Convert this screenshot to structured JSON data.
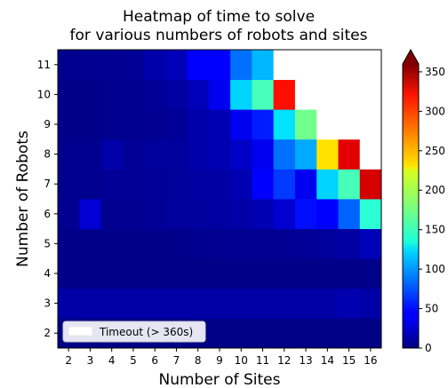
{
  "chart_data": {
    "type": "heatmap",
    "title_lines": [
      "Heatmap of time to solve",
      "for various numbers of robots and sites"
    ],
    "xlabel": "Number of Sites",
    "ylabel": "Number of Robots",
    "x_categories": [
      "2",
      "3",
      "4",
      "5",
      "6",
      "7",
      "8",
      "9",
      "10",
      "11",
      "12",
      "13",
      "14",
      "15",
      "16"
    ],
    "y_categories": [
      "2",
      "3",
      "4",
      "5",
      "6",
      "7",
      "8",
      "9",
      "10",
      "11"
    ],
    "colormap": "jet",
    "color_range": [
      0,
      360
    ],
    "colorbar_ticks": [
      "0",
      "50",
      "100",
      "150",
      "200",
      "250",
      "300",
      "350"
    ],
    "colorbar_extend": "max",
    "timeout_color": "#ffffff",
    "legend": {
      "label": "Timeout (> 360s)",
      "location": "lower-left"
    },
    "values_by_robots": {
      "2": [
        2,
        2,
        2,
        2,
        2,
        2,
        2,
        2,
        2,
        2,
        2,
        2,
        2,
        2,
        2
      ],
      "3": [
        14,
        14,
        14,
        14,
        14,
        14,
        14,
        14,
        14,
        14,
        14,
        14,
        14,
        17,
        14
      ],
      "4": [
        3,
        3,
        3,
        3,
        3,
        3,
        3,
        3,
        3,
        3,
        3,
        3,
        3,
        3,
        3
      ],
      "5": [
        3,
        4,
        4,
        4,
        4,
        4,
        5,
        6,
        7,
        7,
        7,
        8,
        10,
        12,
        20
      ],
      "6": [
        6,
        30,
        6,
        6,
        8,
        10,
        10,
        12,
        14,
        18,
        28,
        50,
        45,
        80,
        150
      ],
      "7": [
        5,
        5,
        8,
        8,
        9,
        10,
        12,
        13,
        18,
        45,
        65,
        40,
        120,
        160,
        330
      ],
      "8": [
        5,
        5,
        15,
        8,
        10,
        10,
        15,
        18,
        25,
        40,
        85,
        105,
        235,
        325,
        null
      ],
      "9": [
        4,
        4,
        5,
        5,
        6,
        8,
        15,
        18,
        40,
        55,
        125,
        175,
        null,
        null,
        null
      ],
      "10": [
        4,
        4,
        5,
        5,
        8,
        12,
        20,
        40,
        120,
        160,
        310,
        null,
        null,
        null,
        null
      ],
      "11": [
        5,
        6,
        7,
        8,
        15,
        20,
        45,
        45,
        85,
        110,
        null,
        null,
        null,
        null,
        null
      ]
    }
  }
}
